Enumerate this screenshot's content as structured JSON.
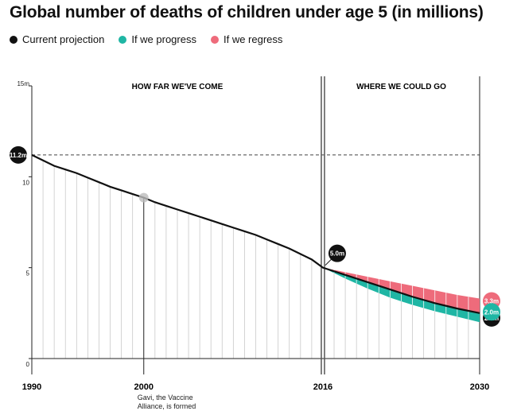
{
  "title": "Global number of deaths of children under age 5 (in millions)",
  "legend": [
    {
      "label": "Current projection",
      "color": "#111111"
    },
    {
      "label": "If we progress",
      "color": "#1fb6a4"
    },
    {
      "label": "If we regress",
      "color": "#ee6b7b"
    }
  ],
  "chart_data": {
    "type": "line",
    "xlim": [
      1990,
      2030
    ],
    "ylim": [
      0,
      15
    ],
    "x_ticks": [
      "1990",
      "2000",
      "2016",
      "2030"
    ],
    "y_ticks": [
      "0",
      "5",
      "10",
      "15m"
    ],
    "section_labels": {
      "left": "HOW FAR WE'VE COME",
      "right": "WHERE WE COULD GO"
    },
    "series": [
      {
        "name": "Current projection",
        "color": "#111111",
        "x": [
          1990,
          1991,
          1992,
          1993,
          1994,
          1995,
          1996,
          1997,
          1998,
          1999,
          2000,
          2001,
          2002,
          2003,
          2004,
          2005,
          2006,
          2007,
          2008,
          2009,
          2010,
          2011,
          2012,
          2013,
          2014,
          2015,
          2016,
          2018,
          2020,
          2022,
          2024,
          2026,
          2028,
          2030
        ],
        "y": [
          11.2,
          10.9,
          10.6,
          10.4,
          10.2,
          9.95,
          9.7,
          9.45,
          9.25,
          9.05,
          8.85,
          8.6,
          8.4,
          8.2,
          8.0,
          7.8,
          7.6,
          7.4,
          7.2,
          7.0,
          6.8,
          6.55,
          6.3,
          6.05,
          5.75,
          5.45,
          5.0,
          4.6,
          4.2,
          3.8,
          3.4,
          3.05,
          2.75,
          2.5
        ]
      },
      {
        "name": "If we progress",
        "color": "#1fb6a4",
        "x": [
          2016,
          2018,
          2020,
          2022,
          2024,
          2026,
          2028,
          2030
        ],
        "y": [
          5.0,
          4.4,
          3.85,
          3.35,
          2.95,
          2.6,
          2.3,
          2.0
        ]
      },
      {
        "name": "If we regress",
        "color": "#ee6b7b",
        "x": [
          2016,
          2018,
          2020,
          2022,
          2024,
          2026,
          2028,
          2030
        ],
        "y": [
          5.0,
          4.75,
          4.5,
          4.25,
          4.0,
          3.75,
          3.5,
          3.3
        ]
      }
    ],
    "reference_line": {
      "y": 11.2
    },
    "value_labels": [
      {
        "x": 1990,
        "y": 11.2,
        "text": "11.2m",
        "color": "#111111"
      },
      {
        "x": 2016,
        "y": 5.0,
        "text": "5.0m",
        "color": "#111111"
      },
      {
        "x": 2030,
        "y": 3.3,
        "text": "3.3m",
        "color": "#ee6b7b"
      },
      {
        "x": 2030,
        "y": 2.5,
        "text": "2.5m",
        "color": "#111111"
      },
      {
        "x": 2030,
        "y": 2.0,
        "text": "2.0m",
        "color": "#1fb6a4"
      }
    ],
    "annotation": {
      "x": 2000,
      "y": 8.85,
      "lines": [
        "Gavi, the Vaccine",
        "Alliance, is formed"
      ]
    }
  }
}
